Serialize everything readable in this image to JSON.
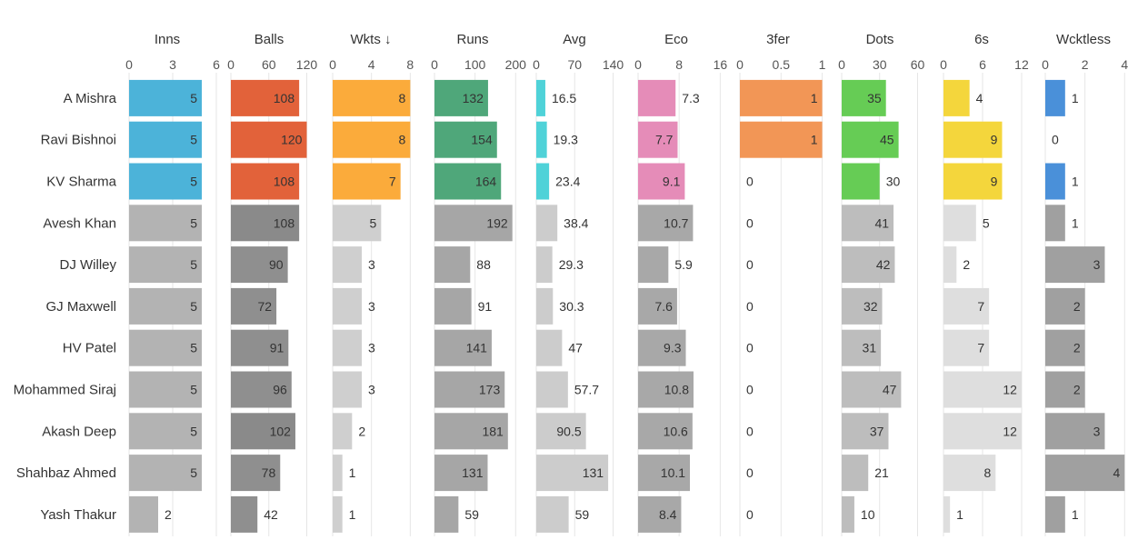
{
  "chart_data": {
    "type": "table",
    "rows": [
      "A Mishra",
      "Ravi Bishnoi",
      "KV Sharma",
      "Avesh Khan",
      "DJ Willey",
      "GJ Maxwell",
      "HV Patel",
      "Mohammed Siraj",
      "Akash Deep",
      "Shahbaz Ahmed",
      "Yash Thakur"
    ],
    "columns": [
      {
        "key": "inns",
        "title": "Inns",
        "ticks": [
          "0",
          "3",
          "6"
        ],
        "xlim": [
          0,
          6
        ],
        "highlight_color": "#4cb3d9",
        "values": [
          5,
          5,
          5,
          5,
          5,
          5,
          5,
          5,
          5,
          5,
          2
        ],
        "labels": [
          "5",
          "5",
          "5",
          "5",
          "5",
          "5",
          "5",
          "5",
          "5",
          "5",
          "2"
        ],
        "greys": [
          "#b3b3b3",
          "#b3b3b3",
          "#b3b3b3",
          "#b3b3b3",
          "#b3b3b3",
          "#b3b3b3",
          "#b3b3b3",
          "#b3b3b3",
          "#b3b3b3",
          "#b3b3b3",
          "#b3b3b3"
        ]
      },
      {
        "key": "balls",
        "title": "Balls",
        "ticks": [
          "0",
          "60",
          "120"
        ],
        "xlim": [
          0,
          138
        ],
        "highlight_color": "#e2623a",
        "values": [
          108,
          120,
          108,
          108,
          90,
          72,
          91,
          96,
          102,
          78,
          42
        ],
        "labels": [
          "108",
          "120",
          "108",
          "108",
          "90",
          "72",
          "91",
          "96",
          "102",
          "78",
          "42"
        ],
        "greys": [
          "#8a8a8a",
          "#8a8a8a",
          "#8a8a8a",
          "#8a8a8a",
          "#8f8f8f",
          "#8f8f8f",
          "#8f8f8f",
          "#8f8f8f",
          "#8a8a8a",
          "#8f8f8f",
          "#8f8f8f"
        ]
      },
      {
        "key": "wkts",
        "title": "Wkts ↓",
        "ticks": [
          "0",
          "4",
          "8"
        ],
        "xlim": [
          0,
          9
        ],
        "highlight_color": "#fbab3b",
        "values": [
          8,
          8,
          7,
          5,
          3,
          3,
          3,
          3,
          2,
          1,
          1
        ],
        "labels": [
          "8",
          "8",
          "7",
          "5",
          "3",
          "3",
          "3",
          "3",
          "2",
          "1",
          "1"
        ],
        "greys": [
          "#cfcfcf",
          "#cfcfcf",
          "#cfcfcf",
          "#cfcfcf",
          "#cfcfcf",
          "#cfcfcf",
          "#cfcfcf",
          "#cfcfcf",
          "#cfcfcf",
          "#cfcfcf",
          "#cfcfcf"
        ]
      },
      {
        "key": "runs",
        "title": "Runs",
        "ticks": [
          "0",
          "100",
          "200"
        ],
        "xlim": [
          0,
          215
        ],
        "highlight_color": "#4fa77a",
        "values": [
          132,
          154,
          164,
          192,
          88,
          91,
          141,
          173,
          181,
          131,
          59
        ],
        "labels": [
          "132",
          "154",
          "164",
          "192",
          "88",
          "91",
          "141",
          "173",
          "181",
          "131",
          "59"
        ],
        "greys": [
          "#a6a6a6",
          "#a6a6a6",
          "#a6a6a6",
          "#a6a6a6",
          "#a6a6a6",
          "#a6a6a6",
          "#a6a6a6",
          "#a6a6a6",
          "#a6a6a6",
          "#a6a6a6",
          "#a6a6a6"
        ]
      },
      {
        "key": "avg",
        "title": "Avg",
        "ticks": [
          "0",
          "70",
          "140"
        ],
        "xlim": [
          0,
          159
        ],
        "highlight_color": "#4fd2d8",
        "values": [
          16.5,
          19.3,
          23.4,
          38.4,
          29.3,
          30.3,
          47,
          57.7,
          90.5,
          131,
          59
        ],
        "labels": [
          "16.5",
          "19.3",
          "23.4",
          "38.4",
          "29.3",
          "30.3",
          "47",
          "57.7",
          "90.5",
          "131",
          "59"
        ],
        "greys": [
          "#cccccc",
          "#cccccc",
          "#cccccc",
          "#cccccc",
          "#cccccc",
          "#cccccc",
          "#cccccc",
          "#cccccc",
          "#cccccc",
          "#cccccc",
          "#cccccc"
        ]
      },
      {
        "key": "eco",
        "title": "Eco",
        "ticks": [
          "0",
          "8",
          "16"
        ],
        "xlim": [
          0,
          17
        ],
        "highlight_color": "#e58cb8",
        "values": [
          7.3,
          7.7,
          9.1,
          10.7,
          5.9,
          7.6,
          9.3,
          10.8,
          10.6,
          10.1,
          8.4
        ],
        "labels": [
          "7.3",
          "7.7",
          "9.1",
          "10.7",
          "5.9",
          "7.6",
          "9.3",
          "10.8",
          "10.6",
          "10.1",
          "8.4"
        ],
        "greys": [
          "#a8a8a8",
          "#a8a8a8",
          "#a8a8a8",
          "#a8a8a8",
          "#a8a8a8",
          "#a8a8a8",
          "#a8a8a8",
          "#a8a8a8",
          "#a8a8a8",
          "#a8a8a8",
          "#a8a8a8"
        ]
      },
      {
        "key": "threefer",
        "title": "3fer",
        "ticks": [
          "0",
          "0.5",
          "1"
        ],
        "xlim": [
          0,
          1.06
        ],
        "highlight_color": "#f29656",
        "values": [
          1,
          1,
          0,
          0,
          0,
          0,
          0,
          0,
          0,
          0,
          0
        ],
        "labels": [
          "1",
          "1",
          "0",
          "0",
          "0",
          "0",
          "0",
          "0",
          "0",
          "0",
          "0"
        ],
        "greys": [
          "#cccccc",
          "#cccccc",
          "#cccccc",
          "#cccccc",
          "#cccccc",
          "#cccccc",
          "#cccccc",
          "#cccccc",
          "#cccccc",
          "#cccccc",
          "#cccccc"
        ]
      },
      {
        "key": "dots",
        "title": "Dots",
        "ticks": [
          "0",
          "30",
          "60"
        ],
        "xlim": [
          0,
          69
        ],
        "highlight_color": "#66cc55",
        "values": [
          35,
          45,
          30,
          41,
          42,
          32,
          31,
          47,
          37,
          21,
          10
        ],
        "labels": [
          "35",
          "45",
          "30",
          "41",
          "42",
          "32",
          "31",
          "47",
          "37",
          "21",
          "10"
        ],
        "greys": [
          "#bdbdbd",
          "#bdbdbd",
          "#bdbdbd",
          "#bdbdbd",
          "#bdbdbd",
          "#bdbdbd",
          "#bdbdbd",
          "#bdbdbd",
          "#bdbdbd",
          "#bdbdbd",
          "#bdbdbd"
        ]
      },
      {
        "key": "sixes",
        "title": "6s",
        "ticks": [
          "0",
          "6",
          "12"
        ],
        "xlim": [
          0,
          13.4
        ],
        "highlight_color": "#f4d63c",
        "values": [
          4,
          9,
          9,
          5,
          2,
          7,
          7,
          12,
          12,
          8,
          1
        ],
        "labels": [
          "4",
          "9",
          "9",
          "5",
          "2",
          "7",
          "7",
          "12",
          "12",
          "8",
          "1"
        ],
        "greys": [
          "#dedede",
          "#dedede",
          "#dedede",
          "#dedede",
          "#dedede",
          "#dedede",
          "#dedede",
          "#dedede",
          "#dedede",
          "#dedede",
          "#dedede"
        ]
      },
      {
        "key": "wcktless",
        "title": "Wcktless",
        "ticks": [
          "0",
          "2",
          "4"
        ],
        "xlim": [
          0,
          4.4
        ],
        "highlight_color": "#4a90d9",
        "values": [
          1,
          0,
          1,
          1,
          3,
          2,
          2,
          2,
          3,
          4,
          1
        ],
        "labels": [
          "1",
          "0",
          "1",
          "1",
          "3",
          "2",
          "2",
          "2",
          "3",
          "4",
          "1"
        ],
        "greys": [
          "#a0a0a0",
          "#a0a0a0",
          "#a0a0a0",
          "#a0a0a0",
          "#a0a0a0",
          "#a0a0a0",
          "#a0a0a0",
          "#a0a0a0",
          "#a0a0a0",
          "#a0a0a0",
          "#a0a0a0"
        ]
      }
    ],
    "highlighted_rows": [
      0,
      1,
      2
    ],
    "grid": true
  }
}
